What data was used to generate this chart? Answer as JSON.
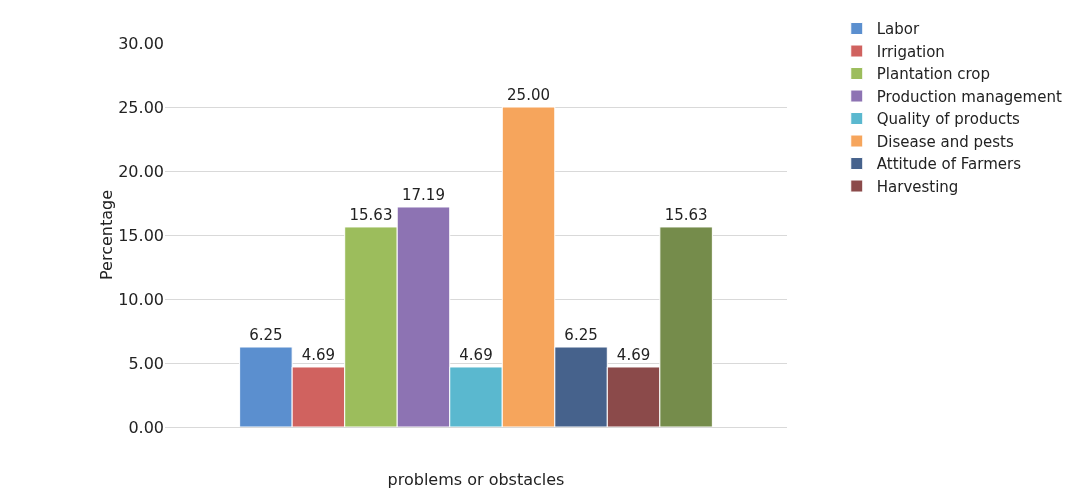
{
  "chart_data": {
    "type": "bar",
    "xlabel": "problems or obstacles",
    "ylabel": "Percentage",
    "categories": [
      null
    ],
    "series": [
      {
        "name": "Labor",
        "color": "#5b8fcf",
        "values": [
          6.25
        ],
        "value_labels": [
          "6.25"
        ]
      },
      {
        "name": "Irrigation",
        "color": "#d0625f",
        "values": [
          4.69
        ],
        "value_labels": [
          "4.69"
        ]
      },
      {
        "name": "Plantation crop",
        "color": "#9cbd5c",
        "values": [
          15.63
        ],
        "value_labels": [
          "15.63"
        ]
      },
      {
        "name": "Production management",
        "color": "#8d73b3",
        "values": [
          17.19
        ],
        "value_labels": [
          "17.19"
        ]
      },
      {
        "name": "Quality of products",
        "color": "#5ab8cf",
        "values": [
          4.69
        ],
        "value_labels": [
          "4.69"
        ]
      },
      {
        "name": "Disease and pests",
        "color": "#f6a55c",
        "values": [
          25.0
        ],
        "value_labels": [
          "25.00"
        ]
      },
      {
        "name": "Attitude of Farmers",
        "color": "#46628c",
        "values": [
          6.25
        ],
        "value_labels": [
          "6.25"
        ]
      },
      {
        "name": "Harvesting",
        "color": "#8b4a4a",
        "values": [
          4.69
        ],
        "value_labels": [
          "4.69"
        ]
      },
      {
        "color": "#758c4b",
        "values": [
          15.63
        ],
        "value_labels": [
          "15.63"
        ]
      }
    ],
    "ylim": [
      0,
      30
    ],
    "yticks": [
      {
        "value": 0,
        "label": "0.00"
      },
      {
        "value": 5,
        "label": "5.00"
      },
      {
        "value": 10,
        "label": "10.00"
      },
      {
        "value": 15,
        "label": "15.00"
      },
      {
        "value": 20,
        "label": "20.00"
      },
      {
        "value": 25,
        "label": "25.00"
      },
      {
        "value": 30,
        "label": "30.00"
      }
    ],
    "grid": "y",
    "legend": "right"
  }
}
